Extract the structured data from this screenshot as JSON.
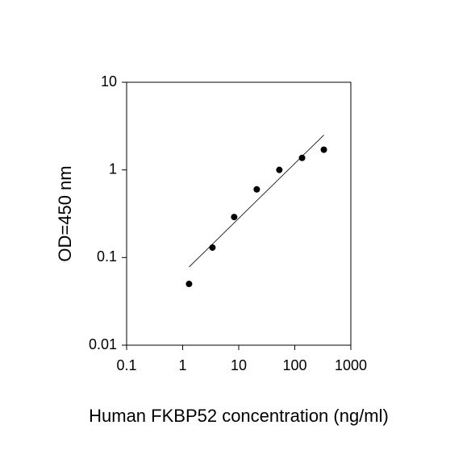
{
  "chart_data": {
    "type": "scatter",
    "x_label": "Human FKBP52 concentration (ng/ml)",
    "y_label": "OD=450 nm",
    "x": [
      1.3,
      3.4,
      8.3,
      21,
      53,
      135,
      330
    ],
    "values": [
      0.05,
      0.13,
      0.29,
      0.6,
      1.0,
      1.37,
      1.7
    ],
    "color": "#000000",
    "trendline": {
      "x": [
        1.3,
        330
      ],
      "y": [
        0.078,
        2.5
      ]
    },
    "xlog": true,
    "ylog": true,
    "xlim": [
      0.1,
      1000
    ],
    "ylim": [
      0.01,
      10
    ],
    "xticks": [
      0.1,
      1,
      10,
      100,
      1000
    ],
    "yticks": [
      0.01,
      0.1,
      1,
      10
    ]
  }
}
